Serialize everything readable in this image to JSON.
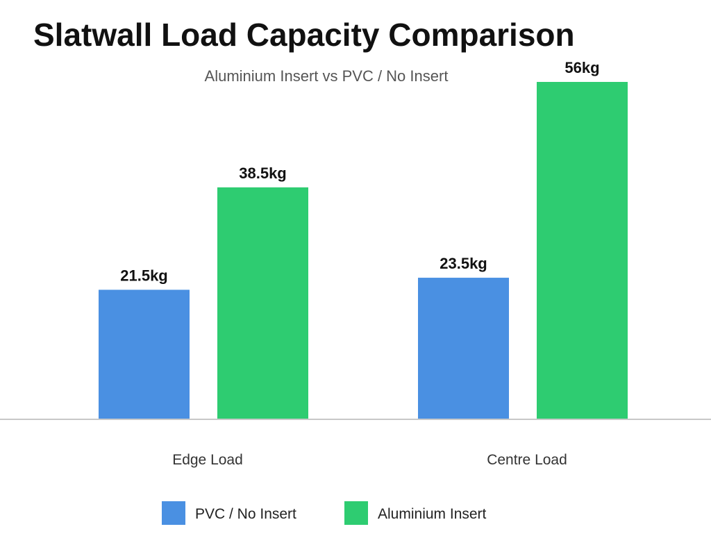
{
  "chart_data": {
    "type": "bar",
    "title": "Slatwall Load Capacity Comparison",
    "subtitle": "Aluminium Insert vs PVC / No Insert",
    "xlabel": "",
    "ylabel": "",
    "unit": "kg",
    "categories": [
      "Edge Load",
      "Centre Load"
    ],
    "series": [
      {
        "name": "PVC / No Insert",
        "values": [
          21.5,
          23.5
        ],
        "labels": [
          "21.5kg",
          "23.5kg"
        ],
        "color": "#4a90e2"
      },
      {
        "name": "Aluminium Insert",
        "values": [
          38.5,
          56
        ],
        "labels": [
          "38.5kg",
          "56kg"
        ],
        "color": "#2ecc71"
      }
    ],
    "ylim": [
      0,
      56
    ],
    "grid": false,
    "legend": "bottom"
  }
}
